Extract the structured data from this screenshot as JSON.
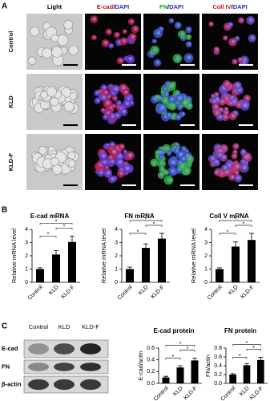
{
  "panel_labels": [
    "A",
    "B",
    "C"
  ],
  "panel_a": {
    "columns": [
      [
        "Light"
      ],
      [
        "E-cad",
        "/",
        "DAPI"
      ],
      [
        "FN",
        "/",
        "DAPI"
      ],
      [
        "Coll IV",
        "/",
        "DAPI"
      ]
    ],
    "rows": [
      "Control",
      "KLD",
      "KLD-F"
    ]
  },
  "panel_c_blot": {
    "lanes": [
      "Control",
      "KLD",
      "KLD-F"
    ],
    "bands": [
      "E-cad",
      "FN",
      "β-actin"
    ]
  },
  "chart_data": [
    {
      "type": "bar",
      "title": "E-cad mRNA",
      "ylabel": "Relative mRNA level",
      "categories": [
        "Control",
        "KLD",
        "KLD-F"
      ],
      "values": [
        1,
        2.1,
        3.05
      ],
      "errors": [
        0.1,
        0.3,
        0.45
      ],
      "color": "#000000",
      "ylim": [
        0,
        4
      ],
      "yticks": [
        0,
        1,
        2,
        3,
        4
      ],
      "significance_labels": [
        "*",
        "*",
        "*"
      ]
    },
    {
      "type": "bar",
      "title": "FN mRNA",
      "ylabel": "Relative mRNA level",
      "categories": [
        "Control",
        "KLD",
        "KLD-F"
      ],
      "values": [
        1,
        2.6,
        3.3
      ],
      "errors": [
        0.15,
        0.3,
        0.4
      ],
      "color": "#000000",
      "ylim": [
        0,
        4
      ],
      "yticks": [
        0,
        1,
        2,
        3,
        4
      ],
      "significance_labels": [
        "*",
        "*",
        "*"
      ]
    },
    {
      "type": "bar",
      "title": "Coll V mRNA",
      "ylabel": "Relative mRNA level",
      "categories": [
        "Control",
        "KLD",
        "KLD-F"
      ],
      "values": [
        1,
        2.7,
        3.2
      ],
      "errors": [
        0.1,
        0.35,
        0.5
      ],
      "color": "#000000",
      "ylim": [
        0,
        4
      ],
      "yticks": [
        0,
        1,
        2,
        3,
        4
      ],
      "significance_labels": [
        "*",
        "*",
        "*"
      ]
    },
    {
      "type": "bar",
      "title": "E-cad protein",
      "ylabel": "E-cad/actin",
      "categories": [
        "Control",
        "KLD",
        "KLD-F"
      ],
      "values": [
        0.1,
        0.27,
        0.39
      ],
      "errors": [
        0.02,
        0.03,
        0.04
      ],
      "color": "#000000",
      "ylim": [
        0,
        0.6
      ],
      "yticks": [
        {
          "value": 0,
          "label": "0.0"
        },
        0.2,
        0.4,
        0.6
      ],
      "significance_labels": [
        "*",
        "*",
        "*"
      ]
    },
    {
      "type": "bar",
      "title": "FN protein",
      "ylabel": "FN/actin",
      "categories": [
        "Control",
        "KLD",
        "KLD-F"
      ],
      "values": [
        0.2,
        0.41,
        0.53
      ],
      "errors": [
        0.02,
        0.04,
        0.06
      ],
      "color": "#000000",
      "ylim": [
        0,
        0.8
      ],
      "yticks": [
        {
          "value": 0,
          "label": "0.0"
        },
        0.2,
        0.4,
        0.6,
        0.8
      ],
      "significance_labels": [
        "*",
        "*",
        "*"
      ]
    }
  ]
}
